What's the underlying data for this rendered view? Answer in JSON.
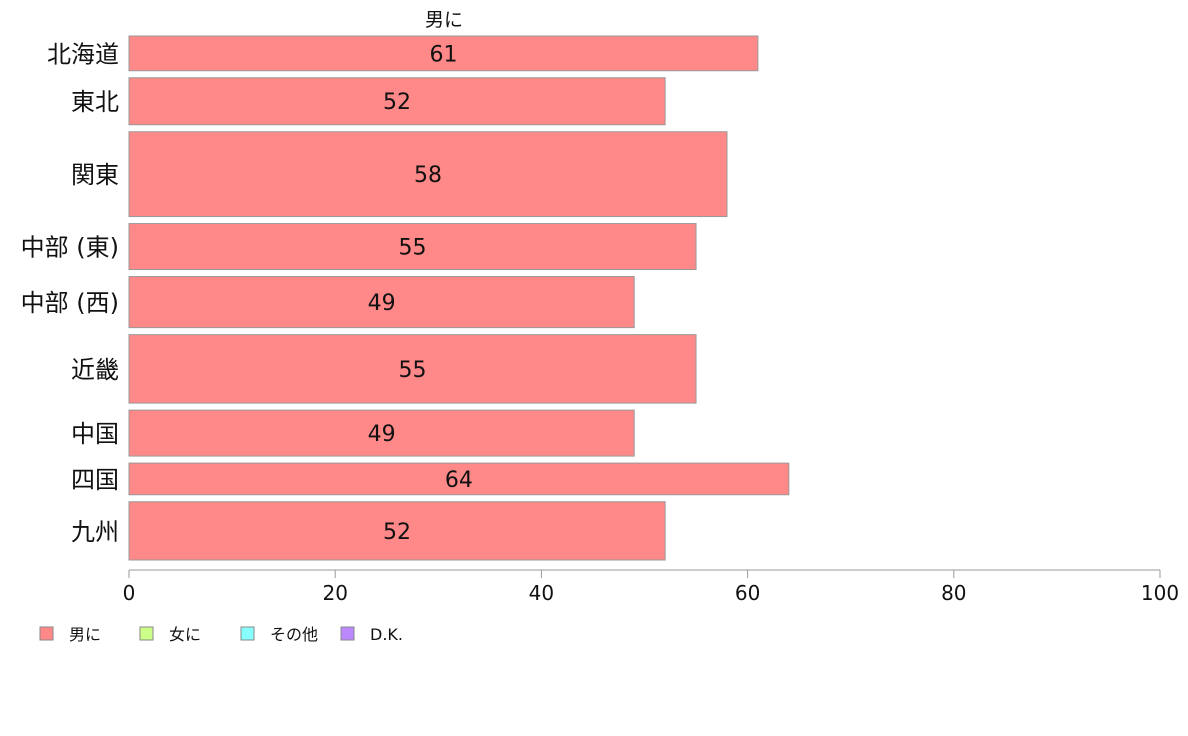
{
  "chart_data": {
    "type": "bar",
    "orientation": "horizontal",
    "series_title": "男に",
    "categories": [
      "北海道",
      "東北",
      "関東",
      "中部 (東)",
      "中部 (西)",
      "近畿",
      "中国",
      "四国",
      "九州"
    ],
    "values": [
      61,
      52,
      58,
      55,
      49,
      55,
      49,
      64,
      52
    ],
    "relative_bar_heights": [
      34,
      46,
      83,
      45,
      50,
      67,
      45,
      31,
      57
    ],
    "xlim": [
      0,
      100
    ],
    "xticks": [
      0,
      20,
      40,
      60,
      80,
      100
    ],
    "grid": false,
    "legend": {
      "placement": "bottom-left",
      "items": [
        {
          "label": "男に",
          "color": "#ff8888"
        },
        {
          "label": "女に",
          "color": "#ccff88"
        },
        {
          "label": "その他",
          "color": "#88ffff"
        },
        {
          "label": "D.K.",
          "color": "#bb88ff"
        }
      ]
    },
    "colors": {
      "bar_fill": "#ff8888",
      "bar_stroke": "#999999",
      "axis": "#999999"
    }
  }
}
